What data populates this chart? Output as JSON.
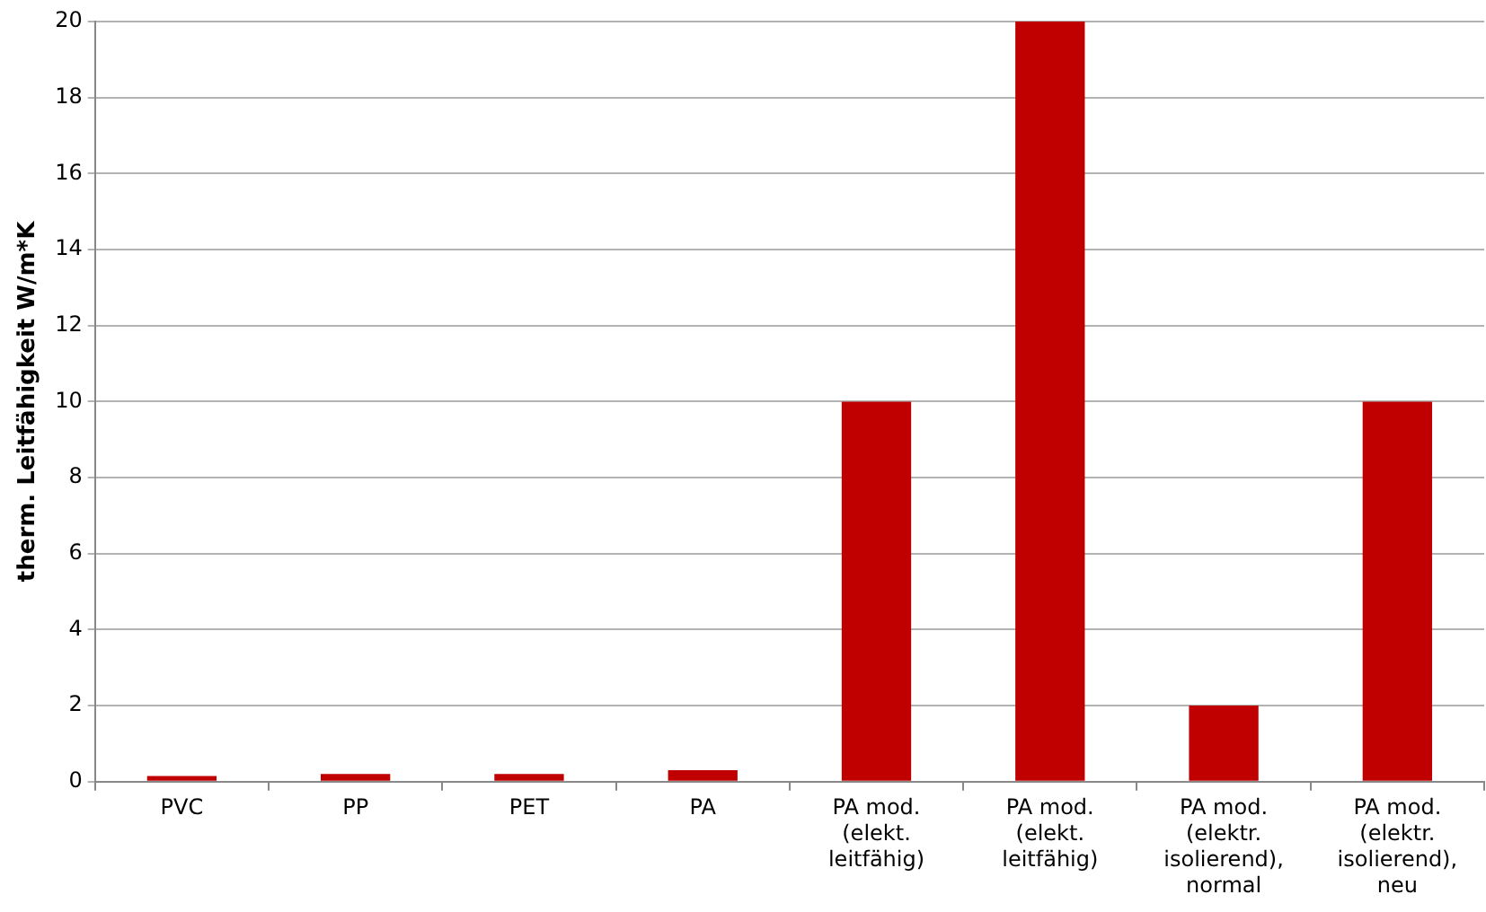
{
  "chart_data": {
    "type": "bar",
    "ylabel": "therm. Leitfähigkeit W/m*K",
    "categories": [
      "PVC",
      "PP",
      "PET",
      "PA",
      "PA mod. (elekt. leitfähig)",
      "PA mod. (elekt. leitfähig)",
      "PA mod. (elektr. isolierend), normal",
      "PA mod. (elektr. isolierend), neu"
    ],
    "values": [
      0.15,
      0.2,
      0.2,
      0.3,
      10,
      20,
      2,
      10
    ],
    "color": "#c00000",
    "ylim": [
      0,
      20
    ],
    "yticks": [
      0,
      2,
      4,
      6,
      8,
      10,
      12,
      14,
      16,
      18,
      20
    ],
    "grid": "y",
    "legend": false
  }
}
